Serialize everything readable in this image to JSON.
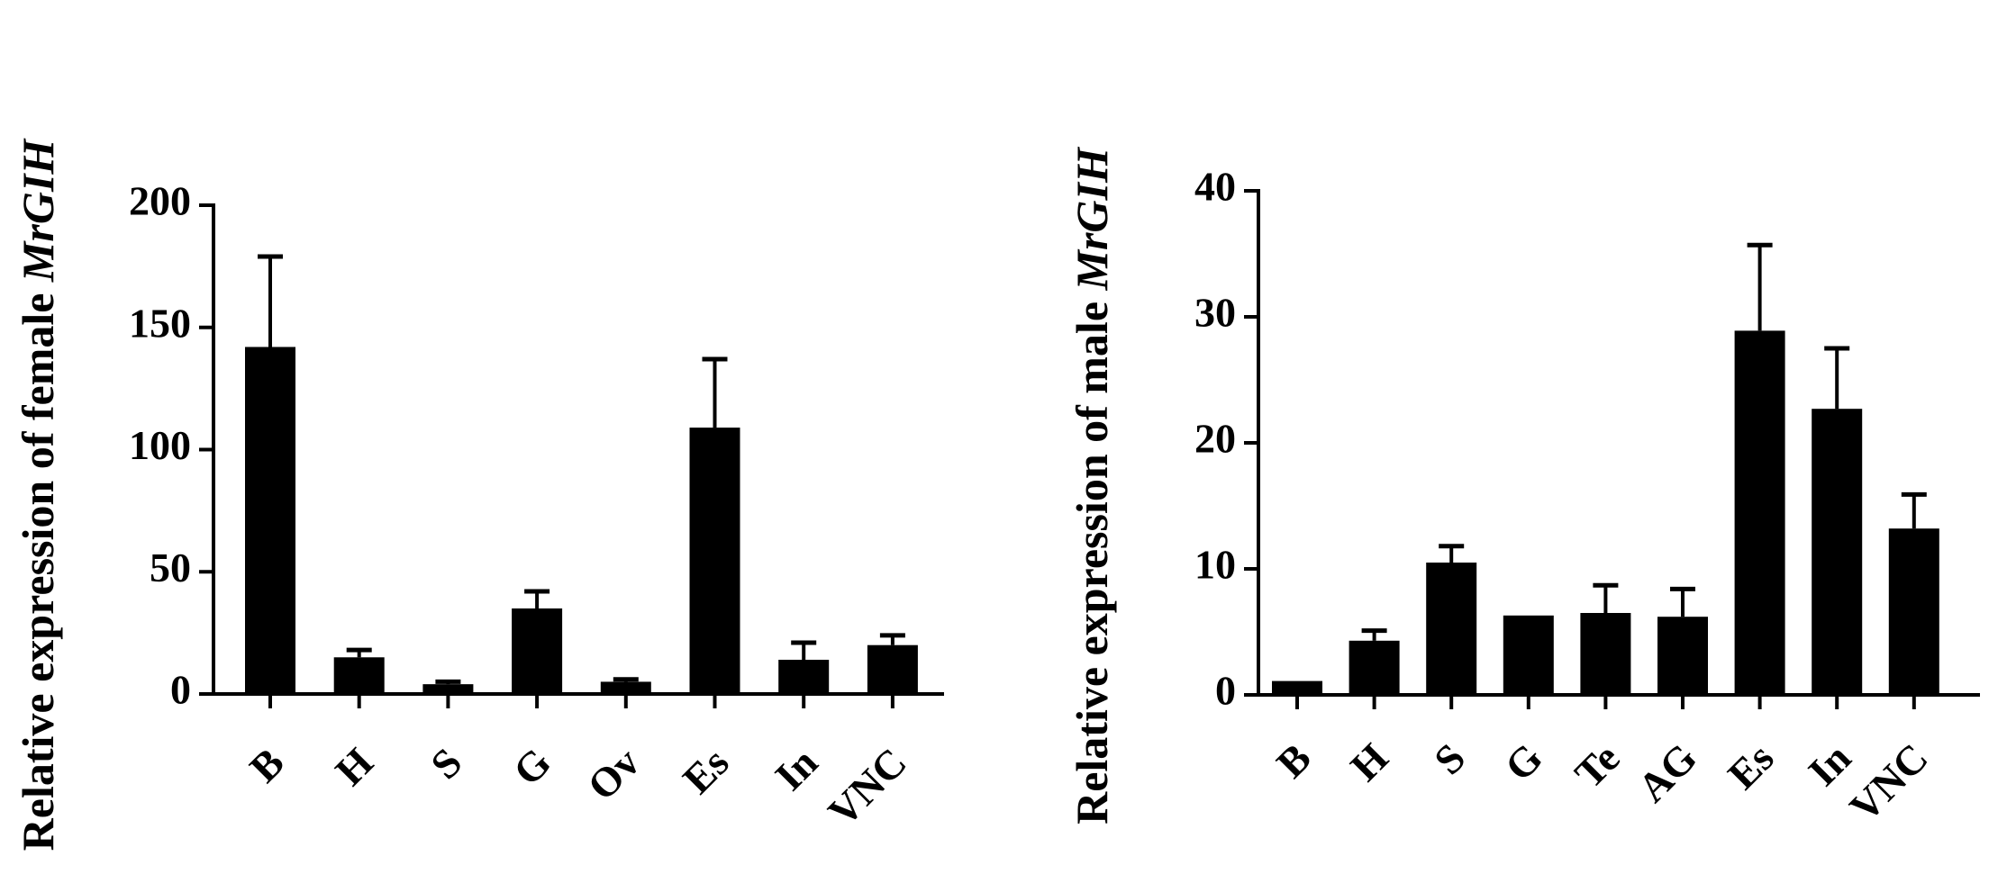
{
  "chart_data": [
    {
      "type": "bar",
      "ylabel_prefix": "Relative expression of female ",
      "ylabel_gene": "MrGIH",
      "xlabel": "",
      "title": "",
      "ylim": [
        0,
        200
      ],
      "yticks": [
        0,
        50,
        100,
        150,
        200
      ],
      "categories": [
        "B",
        "H",
        "S",
        "G",
        "Ov",
        "Es",
        "In",
        "VNC"
      ],
      "values": [
        142,
        15,
        4,
        35,
        5,
        109,
        14,
        20
      ],
      "errors": [
        37,
        3,
        1,
        7,
        1,
        28,
        7,
        4
      ],
      "color": "#000000",
      "grid": false,
      "legend": "none"
    },
    {
      "type": "bar",
      "ylabel_prefix": "Relative expression of male ",
      "ylabel_gene": "MrGIH",
      "xlabel": "",
      "title": "",
      "ylim": [
        0,
        40
      ],
      "yticks": [
        0,
        10,
        20,
        30,
        40
      ],
      "categories": [
        "B",
        "H",
        "S",
        "G",
        "Te",
        "AG",
        "Es",
        "In",
        "VNC"
      ],
      "values": [
        1.1,
        4.3,
        10.5,
        6.3,
        6.5,
        6.2,
        28.9,
        22.7,
        13.2
      ],
      "errors": [
        0,
        0.8,
        1.3,
        0,
        2.2,
        2.2,
        6.8,
        4.8,
        2.7
      ],
      "color": "#000000",
      "grid": false,
      "legend": "none"
    }
  ]
}
